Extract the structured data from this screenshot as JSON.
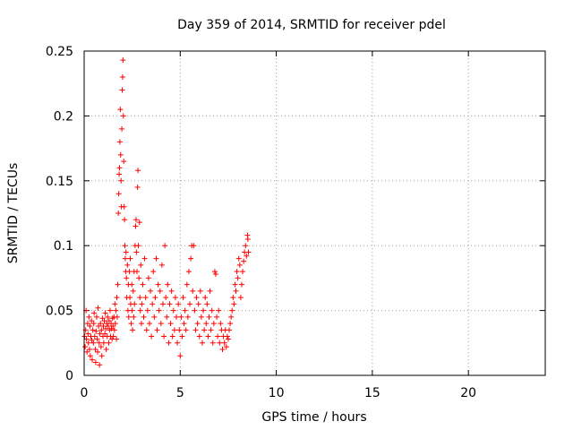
{
  "chart_data": {
    "type": "scatter",
    "title": "Day 359 of 2014, SRMTID for receiver pdel",
    "xlabel": "GPS time / hours",
    "ylabel": "SRMTID / TECUs",
    "xlim": [
      0,
      24
    ],
    "ylim": [
      0,
      0.25
    ],
    "x_ticks": [
      0,
      5,
      10,
      15,
      20
    ],
    "x_tick_labels": [
      "0",
      "5",
      "10",
      "15",
      "20"
    ],
    "y_ticks": [
      0,
      0.05,
      0.1,
      0.15,
      0.2,
      0.25
    ],
    "y_tick_labels": [
      "0",
      "0.05",
      "0.1",
      "0.15",
      "0.2",
      "0.25"
    ],
    "grid": true,
    "marker": "+",
    "series_color": "#ff0000",
    "series": [
      {
        "name": "SRMTID",
        "points": [
          [
            0.02,
            0.03
          ],
          [
            0.05,
            0.022
          ],
          [
            0.08,
            0.035
          ],
          [
            0.1,
            0.05
          ],
          [
            0.12,
            0.028
          ],
          [
            0.15,
            0.018
          ],
          [
            0.18,
            0.04
          ],
          [
            0.2,
            0.032
          ],
          [
            0.22,
            0.025
          ],
          [
            0.25,
            0.045
          ],
          [
            0.28,
            0.02
          ],
          [
            0.3,
            0.038
          ],
          [
            0.32,
            0.015
          ],
          [
            0.35,
            0.03
          ],
          [
            0.38,
            0.042
          ],
          [
            0.4,
            0.027
          ],
          [
            0.42,
            0.012
          ],
          [
            0.45,
            0.035
          ],
          [
            0.48,
            0.025
          ],
          [
            0.5,
            0.04
          ],
          [
            0.52,
            0.048
          ],
          [
            0.55,
            0.03
          ],
          [
            0.58,
            0.02
          ],
          [
            0.6,
            0.01
          ],
          [
            0.62,
            0.034
          ],
          [
            0.65,
            0.045
          ],
          [
            0.68,
            0.028
          ],
          [
            0.7,
            0.018
          ],
          [
            0.72,
            0.052
          ],
          [
            0.75,
            0.038
          ],
          [
            0.78,
            0.025
          ],
          [
            0.8,
            0.008
          ],
          [
            0.82,
            0.032
          ],
          [
            0.85,
            0.04
          ],
          [
            0.88,
            0.022
          ],
          [
            0.9,
            0.035
          ],
          [
            0.92,
            0.015
          ],
          [
            0.95,
            0.044
          ],
          [
            0.98,
            0.03
          ],
          [
            1.0,
            0.038
          ],
          [
            1.02,
            0.025
          ],
          [
            1.05,
            0.042
          ],
          [
            1.08,
            0.032
          ],
          [
            1.1,
            0.048
          ],
          [
            1.12,
            0.036
          ],
          [
            1.15,
            0.02
          ],
          [
            1.18,
            0.04
          ],
          [
            1.2,
            0.03
          ],
          [
            1.22,
            0.045
          ],
          [
            1.25,
            0.038
          ],
          [
            1.28,
            0.025
          ],
          [
            1.3,
            0.042
          ],
          [
            1.32,
            0.035
          ],
          [
            1.35,
            0.05
          ],
          [
            1.38,
            0.03
          ],
          [
            1.4,
            0.04
          ],
          [
            1.42,
            0.036
          ],
          [
            1.45,
            0.028
          ],
          [
            1.48,
            0.044
          ],
          [
            1.5,
            0.038
          ],
          [
            1.52,
            0.03
          ],
          [
            1.55,
            0.045
          ],
          [
            1.58,
            0.035
          ],
          [
            1.6,
            0.055
          ],
          [
            1.62,
            0.04
          ],
          [
            1.65,
            0.05
          ],
          [
            1.68,
            0.028
          ],
          [
            1.7,
            0.06
          ],
          [
            1.72,
            0.045
          ],
          [
            1.75,
            0.07
          ],
          [
            1.78,
            0.125
          ],
          [
            1.8,
            0.14
          ],
          [
            1.82,
            0.155
          ],
          [
            1.84,
            0.16
          ],
          [
            1.86,
            0.18
          ],
          [
            1.88,
            0.205
          ],
          [
            1.9,
            0.17
          ],
          [
            1.92,
            0.15
          ],
          [
            1.94,
            0.13
          ],
          [
            1.96,
            0.19
          ],
          [
            1.98,
            0.22
          ],
          [
            2.0,
            0.23
          ],
          [
            2.02,
            0.243
          ],
          [
            2.04,
            0.2
          ],
          [
            2.06,
            0.165
          ],
          [
            2.08,
            0.13
          ],
          [
            2.1,
            0.12
          ],
          [
            2.12,
            0.1
          ],
          [
            2.14,
            0.09
          ],
          [
            2.16,
            0.08
          ],
          [
            2.18,
            0.095
          ],
          [
            2.2,
            0.075
          ],
          [
            2.22,
            0.06
          ],
          [
            2.25,
            0.085
          ],
          [
            2.28,
            0.05
          ],
          [
            2.3,
            0.07
          ],
          [
            2.32,
            0.045
          ],
          [
            2.35,
            0.08
          ],
          [
            2.38,
            0.06
          ],
          [
            2.4,
            0.09
          ],
          [
            2.42,
            0.055
          ],
          [
            2.45,
            0.04
          ],
          [
            2.48,
            0.07
          ],
          [
            2.5,
            0.05
          ],
          [
            2.52,
            0.035
          ],
          [
            2.55,
            0.065
          ],
          [
            2.58,
            0.045
          ],
          [
            2.6,
            0.08
          ],
          [
            2.62,
            0.055
          ],
          [
            2.65,
            0.1
          ],
          [
            2.68,
            0.115
          ],
          [
            2.7,
            0.12
          ],
          [
            2.72,
            0.095
          ],
          [
            2.75,
            0.08
          ],
          [
            2.78,
            0.145
          ],
          [
            2.8,
            0.158
          ],
          [
            2.82,
            0.1
          ],
          [
            2.85,
            0.075
          ],
          [
            2.88,
            0.118
          ],
          [
            2.9,
            0.06
          ],
          [
            2.92,
            0.05
          ],
          [
            2.95,
            0.085
          ],
          [
            2.98,
            0.04
          ],
          [
            3.0,
            0.055
          ],
          [
            3.05,
            0.07
          ],
          [
            3.1,
            0.045
          ],
          [
            3.15,
            0.09
          ],
          [
            3.2,
            0.06
          ],
          [
            3.25,
            0.035
          ],
          [
            3.3,
            0.05
          ],
          [
            3.35,
            0.075
          ],
          [
            3.4,
            0.04
          ],
          [
            3.45,
            0.065
          ],
          [
            3.5,
            0.03
          ],
          [
            3.55,
            0.055
          ],
          [
            3.6,
            0.08
          ],
          [
            3.65,
            0.045
          ],
          [
            3.7,
            0.06
          ],
          [
            3.75,
            0.09
          ],
          [
            3.8,
            0.035
          ],
          [
            3.85,
            0.07
          ],
          [
            3.9,
            0.05
          ],
          [
            3.95,
            0.065
          ],
          [
            4.0,
            0.04
          ],
          [
            4.05,
            0.085
          ],
          [
            4.1,
            0.055
          ],
          [
            4.15,
            0.03
          ],
          [
            4.2,
            0.1
          ],
          [
            4.25,
            0.06
          ],
          [
            4.3,
            0.045
          ],
          [
            4.35,
            0.07
          ],
          [
            4.4,
            0.025
          ],
          [
            4.45,
            0.055
          ],
          [
            4.5,
            0.04
          ],
          [
            4.55,
            0.065
          ],
          [
            4.6,
            0.03
          ],
          [
            4.65,
            0.05
          ],
          [
            4.7,
            0.035
          ],
          [
            4.75,
            0.06
          ],
          [
            4.8,
            0.045
          ],
          [
            4.85,
            0.025
          ],
          [
            4.9,
            0.055
          ],
          [
            4.95,
            0.035
          ],
          [
            5.0,
            0.015
          ],
          [
            5.05,
            0.045
          ],
          [
            5.1,
            0.03
          ],
          [
            5.15,
            0.06
          ],
          [
            5.2,
            0.04
          ],
          [
            5.25,
            0.05
          ],
          [
            5.3,
            0.035
          ],
          [
            5.35,
            0.07
          ],
          [
            5.4,
            0.045
          ],
          [
            5.45,
            0.08
          ],
          [
            5.5,
            0.055
          ],
          [
            5.55,
            0.09
          ],
          [
            5.6,
            0.1
          ],
          [
            5.65,
            0.065
          ],
          [
            5.7,
            0.1
          ],
          [
            5.75,
            0.05
          ],
          [
            5.8,
            0.035
          ],
          [
            5.85,
            0.06
          ],
          [
            5.9,
            0.04
          ],
          [
            5.95,
            0.055
          ],
          [
            6.0,
            0.03
          ],
          [
            6.05,
            0.065
          ],
          [
            6.1,
            0.045
          ],
          [
            6.15,
            0.025
          ],
          [
            6.2,
            0.05
          ],
          [
            6.25,
            0.035
          ],
          [
            6.3,
            0.06
          ],
          [
            6.35,
            0.04
          ],
          [
            6.4,
            0.055
          ],
          [
            6.45,
            0.03
          ],
          [
            6.5,
            0.045
          ],
          [
            6.55,
            0.065
          ],
          [
            6.6,
            0.035
          ],
          [
            6.65,
            0.05
          ],
          [
            6.7,
            0.025
          ],
          [
            6.75,
            0.04
          ],
          [
            6.8,
            0.08
          ],
          [
            6.85,
            0.078
          ],
          [
            6.9,
            0.045
          ],
          [
            6.95,
            0.03
          ],
          [
            7.0,
            0.05
          ],
          [
            7.05,
            0.025
          ],
          [
            7.1,
            0.04
          ],
          [
            7.15,
            0.035
          ],
          [
            7.2,
            0.02
          ],
          [
            7.25,
            0.03
          ],
          [
            7.3,
            0.025
          ],
          [
            7.35,
            0.035
          ],
          [
            7.4,
            0.022
          ],
          [
            7.45,
            0.03
          ],
          [
            7.5,
            0.028
          ],
          [
            7.55,
            0.035
          ],
          [
            7.6,
            0.04
          ],
          [
            7.65,
            0.045
          ],
          [
            7.7,
            0.05
          ],
          [
            7.75,
            0.06
          ],
          [
            7.8,
            0.055
          ],
          [
            7.85,
            0.07
          ],
          [
            7.9,
            0.065
          ],
          [
            7.95,
            0.08
          ],
          [
            8.0,
            0.075
          ],
          [
            8.05,
            0.09
          ],
          [
            8.1,
            0.085
          ],
          [
            8.15,
            0.06
          ],
          [
            8.2,
            0.07
          ],
          [
            8.25,
            0.08
          ],
          [
            8.3,
            0.088
          ],
          [
            8.35,
            0.095
          ],
          [
            8.4,
            0.1
          ],
          [
            8.45,
            0.092
          ],
          [
            8.5,
            0.108
          ],
          [
            8.52,
            0.105
          ],
          [
            8.55,
            0.095
          ]
        ]
      }
    ]
  }
}
